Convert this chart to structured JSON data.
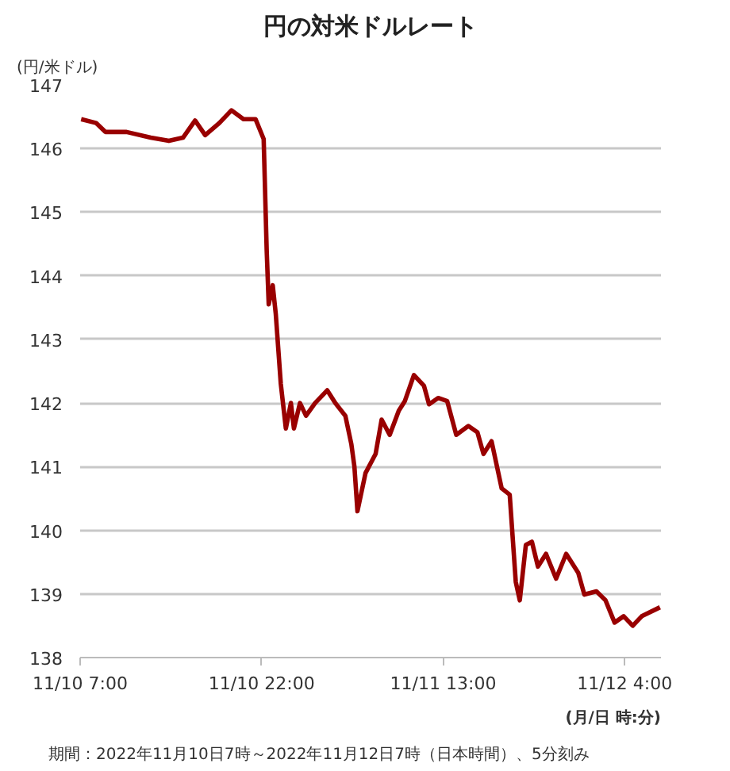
{
  "chart_data": {
    "type": "line",
    "title": "円の対米ドルレート",
    "ylabel": "(円/米ドル)",
    "xlabel": "(月/日 時:分)",
    "annotations": [
      "期間：2022年11月10日7時～2022年11月12日7時（日本時間）、5分刻み"
    ],
    "x": [
      "2022-11-10T07:05",
      "2022-11-10T08:20",
      "2022-11-10T09:05",
      "2022-11-10T10:50",
      "2022-11-10T12:50",
      "2022-11-10T14:20",
      "2022-11-10T15:30",
      "2022-11-10T16:30",
      "2022-11-10T17:20",
      "2022-11-10T18:30",
      "2022-11-10T19:30",
      "2022-11-10T20:30",
      "2022-11-10T21:30",
      "2022-11-10T22:10",
      "2022-11-10T22:25",
      "2022-11-10T22:35",
      "2022-11-10T22:55",
      "2022-11-10T23:10",
      "2022-11-10T23:35",
      "2022-11-11T00:00",
      "2022-11-11T00:25",
      "2022-11-11T00:40",
      "2022-11-11T01:10",
      "2022-11-11T01:40",
      "2022-11-11T02:25",
      "2022-11-11T03:25",
      "2022-11-11T04:05",
      "2022-11-11T04:55",
      "2022-11-11T05:25",
      "2022-11-11T05:40",
      "2022-11-11T05:55",
      "2022-11-11T06:35",
      "2022-11-11T07:25",
      "2022-11-11T07:55",
      "2022-11-11T08:35",
      "2022-11-11T09:20",
      "2022-11-11T09:50",
      "2022-11-11T10:35",
      "2022-11-11T11:25",
      "2022-11-11T11:50",
      "2022-11-11T12:35",
      "2022-11-11T13:20",
      "2022-11-11T14:05",
      "2022-11-11T15:05",
      "2022-11-11T15:50",
      "2022-11-11T16:20",
      "2022-11-11T17:00",
      "2022-11-11T17:50",
      "2022-11-11T18:30",
      "2022-11-11T19:00",
      "2022-11-11T19:20",
      "2022-11-11T19:50",
      "2022-11-11T20:20",
      "2022-11-11T20:50",
      "2022-11-11T21:30",
      "2022-11-11T22:20",
      "2022-11-11T23:10",
      "2022-11-12T00:10",
      "2022-11-12T00:40",
      "2022-11-12T01:40",
      "2022-11-12T02:25",
      "2022-11-12T03:10",
      "2022-11-12T03:55",
      "2022-11-12T04:40",
      "2022-11-12T05:25",
      "2022-11-12T06:55"
    ],
    "series": [
      {
        "color": "#990000",
        "values": [
          146.46,
          146.4,
          146.26,
          146.26,
          146.17,
          146.12,
          146.17,
          146.44,
          146.21,
          146.4,
          146.6,
          146.46,
          146.46,
          146.15,
          144.4,
          143.55,
          143.85,
          143.4,
          142.3,
          141.6,
          142.0,
          141.6,
          142.0,
          141.8,
          142.0,
          142.2,
          142.0,
          141.8,
          141.35,
          141.0,
          140.3,
          140.9,
          141.2,
          141.74,
          141.5,
          141.88,
          142.03,
          142.44,
          142.27,
          141.98,
          142.08,
          142.03,
          141.5,
          141.64,
          141.54,
          141.2,
          141.4,
          140.66,
          140.56,
          139.19,
          138.9,
          139.77,
          139.82,
          139.43,
          139.63,
          139.24,
          139.63,
          139.33,
          138.99,
          139.04,
          138.9,
          138.55,
          138.65,
          138.5,
          138.65,
          138.79
        ]
      }
    ],
    "xlim": [
      "2022-11-10T07:00",
      "2022-11-12T07:00"
    ],
    "xticks": [
      {
        "value": "2022-11-10T07:00",
        "label": "11/10 7:00"
      },
      {
        "value": "2022-11-10T22:00",
        "label": "11/10 22:00"
      },
      {
        "value": "2022-11-11T13:00",
        "label": "11/11 13:00"
      },
      {
        "value": "2022-11-12T04:00",
        "label": "11/12 4:00"
      }
    ],
    "ylim": [
      138,
      147
    ],
    "yticks": [
      138,
      139,
      140,
      141,
      142,
      143,
      144,
      145,
      146,
      147
    ],
    "grid": "y",
    "marker": "none",
    "line_style": "solid"
  }
}
